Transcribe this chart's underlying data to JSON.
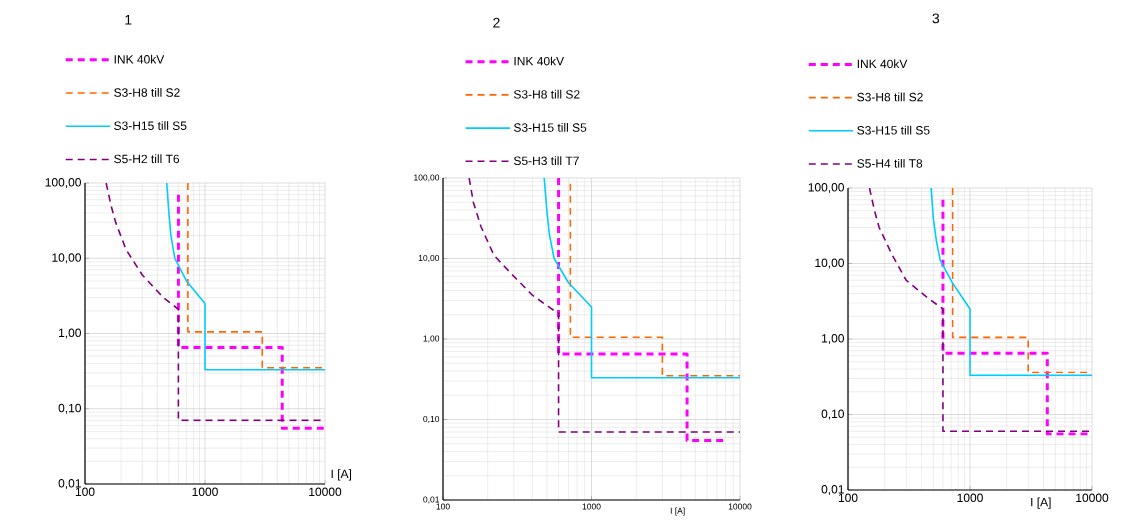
{
  "chart_data": [
    {
      "type": "line",
      "title": "1",
      "xlabel": "I [A]",
      "log": "xy",
      "grid": true,
      "legend": "top",
      "xlim": [
        100,
        10000
      ],
      "ylim": [
        0.01,
        100
      ],
      "xticks": [
        100,
        1000,
        10000
      ],
      "yticks": [
        {
          "value": 100,
          "label": "100,00"
        },
        {
          "value": 10,
          "label": "10,00"
        },
        {
          "value": 1,
          "label": "1,00"
        },
        {
          "value": 0.1,
          "label": "0,10"
        },
        {
          "value": 0.01,
          "label": "0,01"
        }
      ],
      "series": [
        {
          "name": "INK 40kV",
          "color": "#ff00ff",
          "line_style": "dashed",
          "x": [
            600,
            600,
            4400,
            4400,
            10000
          ],
          "values": [
            70,
            0.65,
            0.65,
            0.055,
            0.055
          ]
        },
        {
          "name": "S3-H8 till S2",
          "color": "#ff6600",
          "line_style": "dashed",
          "x": [
            720,
            720,
            3000,
            3000,
            10000
          ],
          "values": [
            100,
            1.05,
            1.05,
            0.35,
            0.35
          ]
        },
        {
          "name": "S3-H15 till S5",
          "color": "#00ccff",
          "line_style": "solid",
          "x": [
            480,
            500,
            520,
            560,
            700,
            1000,
            1000,
            10000
          ],
          "values": [
            100,
            40,
            20,
            10,
            5,
            2.5,
            0.33,
            0.33
          ]
        },
        {
          "name": "S5-H2 till T6",
          "color": "#800080",
          "line_style": "dashed",
          "x": [
            150,
            165,
            180,
            220,
            300,
            450,
            600,
            600,
            9500
          ],
          "values": [
            100,
            50,
            30,
            13,
            6,
            3,
            2.1,
            0.07,
            0.07
          ]
        }
      ]
    },
    {
      "type": "line",
      "title": "2",
      "xlabel": "I [A]",
      "log": "xy",
      "grid": true,
      "legend": "top",
      "xlim": [
        100,
        10000
      ],
      "ylim": [
        0.01,
        100
      ],
      "xticks": [
        100,
        1000,
        10000
      ],
      "yticks": [
        {
          "value": 100,
          "label": "100,00"
        },
        {
          "value": 10,
          "label": "10,00"
        },
        {
          "value": 1,
          "label": "1,00"
        },
        {
          "value": 0.1,
          "label": "0,10"
        },
        {
          "value": 0.01,
          "label": "0,01"
        }
      ],
      "series": [
        {
          "name": "INK 40kV",
          "color": "#ff00ff",
          "line_style": "dashed",
          "x": [
            600,
            600,
            4400,
            4400,
            8000
          ],
          "values": [
            100,
            0.65,
            0.65,
            0.055,
            0.055
          ]
        },
        {
          "name": "S3-H8 till S2",
          "color": "#ff6600",
          "line_style": "dashed",
          "x": [
            720,
            720,
            3000,
            3000,
            10000
          ],
          "values": [
            85,
            1.05,
            1.05,
            0.35,
            0.35
          ]
        },
        {
          "name": "S3-H15 till S5",
          "color": "#00ccff",
          "line_style": "solid",
          "x": [
            480,
            500,
            520,
            560,
            700,
            1000,
            1000,
            10000
          ],
          "values": [
            100,
            40,
            20,
            10,
            5,
            2.5,
            0.33,
            0.33
          ]
        },
        {
          "name": "S5-H3 till T7",
          "color": "#800080",
          "line_style": "dashed",
          "x": [
            150,
            160,
            180,
            220,
            300,
            400,
            590,
            600,
            600,
            10000
          ],
          "values": [
            100,
            50,
            25,
            11,
            6,
            3.5,
            2.1,
            2.1,
            0.07,
            0.07
          ]
        }
      ]
    },
    {
      "type": "line",
      "title": "3",
      "xlabel": "I [A]",
      "log": "xy",
      "grid": true,
      "legend": "top",
      "xlim": [
        100,
        10000
      ],
      "ylim": [
        0.01,
        100
      ],
      "xticks": [
        100,
        1000,
        10000
      ],
      "yticks": [
        {
          "value": 100,
          "label": "100,00"
        },
        {
          "value": 10,
          "label": "10,00"
        },
        {
          "value": 1,
          "label": "1,00"
        },
        {
          "value": 0.1,
          "label": "0,10"
        },
        {
          "value": 0.01,
          "label": "0,01"
        }
      ],
      "series": [
        {
          "name": "INK 40kV",
          "color": "#ff00ff",
          "line_style": "dashed",
          "x": [
            600,
            600,
            4300,
            4300,
            10000
          ],
          "values": [
            70,
            0.65,
            0.65,
            0.055,
            0.055
          ]
        },
        {
          "name": "S3-H8 till S2",
          "color": "#ff6600",
          "line_style": "dashed",
          "x": [
            720,
            720,
            3000,
            3000,
            10000
          ],
          "values": [
            100,
            1.05,
            1.05,
            0.36,
            0.36
          ]
        },
        {
          "name": "S3-H15 till S5",
          "color": "#00ccff",
          "line_style": "solid",
          "x": [
            480,
            500,
            530,
            570,
            720,
            1000,
            1000,
            10000
          ],
          "values": [
            100,
            40,
            20,
            11,
            5.5,
            2.5,
            0.33,
            0.33
          ]
        },
        {
          "name": "S5-H4 till T8",
          "color": "#800080",
          "line_style": "dashed",
          "x": [
            150,
            165,
            180,
            230,
            300,
            450,
            600,
            600,
            10000
          ],
          "values": [
            100,
            50,
            30,
            13,
            6,
            3.5,
            2.5,
            0.06,
            0.06
          ]
        }
      ]
    }
  ]
}
